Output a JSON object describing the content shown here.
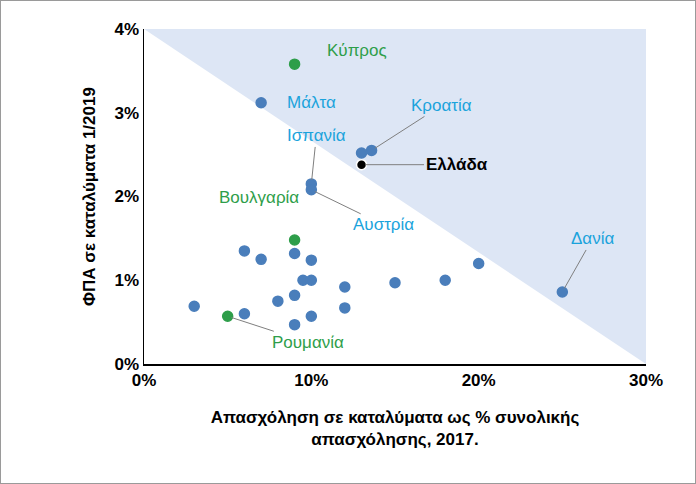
{
  "chart_data": {
    "type": "scatter",
    "x_label": [
      "Απασχόληση σε καταλύματα ως % συνολικής",
      "απασχόλησης, 2017."
    ],
    "y_label": "ΦΠΑ σε καταλύματα 1/2019",
    "x": [
      9,
      7,
      13.6,
      13,
      10,
      10,
      9,
      25,
      5,
      13,
      6,
      7,
      9,
      10,
      9.5,
      10,
      8,
      9,
      12,
      15,
      18,
      20,
      3,
      6,
      9,
      10,
      12
    ],
    "values": [
      3.58,
      3.12,
      2.55,
      2.38,
      2.15,
      2.08,
      1.48,
      0.86,
      0.57,
      2.52,
      1.35,
      1.25,
      1.32,
      1.24,
      1.0,
      1.0,
      0.75,
      0.82,
      0.92,
      0.97,
      1.0,
      1.2,
      0.69,
      0.6,
      0.47,
      0.57,
      0.67
    ],
    "labels": [
      "Κύπρος",
      "Μάλτα",
      "Κροατία",
      "Ελλάδα",
      "Ισπανία",
      "Αυστρία",
      "Βουλγαρία",
      "Δανία",
      "Ρουμανία",
      null,
      null,
      null,
      null,
      null,
      null,
      null,
      null,
      null,
      null,
      null,
      null,
      null,
      null,
      null,
      null,
      null,
      null
    ],
    "colors": [
      "#2e9e4a",
      "#4a7ebb",
      "#4a7ebb",
      "#000000",
      "#4a7ebb",
      "#4a7ebb",
      "#2e9e4a",
      "#4a7ebb",
      "#2e9e4a",
      "#4a7ebb",
      "#4a7ebb",
      "#4a7ebb",
      "#4a7ebb",
      "#4a7ebb",
      "#4a7ebb",
      "#4a7ebb",
      "#4a7ebb",
      "#4a7ebb",
      "#4a7ebb",
      "#4a7ebb",
      "#4a7ebb",
      "#4a7ebb",
      "#4a7ebb",
      "#4a7ebb",
      "#4a7ebb",
      "#4a7ebb",
      "#4a7ebb"
    ],
    "label_colors": [
      "#2e9e4a",
      "#1aa3dc",
      "#1aa3dc",
      "#000000",
      "#1aa3dc",
      "#1aa3dc",
      "#2e9e4a",
      "#1aa3dc",
      "#2e9e4a",
      null,
      null,
      null,
      null,
      null,
      null,
      null,
      null,
      null,
      null,
      null,
      null,
      null,
      null,
      null,
      null,
      null,
      null
    ],
    "xlim": [
      0,
      30
    ],
    "xticks": [
      {
        "value": 0,
        "label": "0%"
      },
      {
        "value": 10,
        "label": "10%"
      },
      {
        "value": 20,
        "label": "20%"
      },
      {
        "value": 30,
        "label": "30%"
      }
    ],
    "ylim": [
      0,
      4
    ],
    "yticks": [
      {
        "value": 0,
        "label": "0%"
      },
      {
        "value": 1,
        "label": "1%"
      },
      {
        "value": 2,
        "label": "2%"
      },
      {
        "value": 3,
        "label": "3%"
      },
      {
        "value": 4,
        "label": "4%"
      }
    ],
    "grid": false,
    "legend": "none"
  }
}
